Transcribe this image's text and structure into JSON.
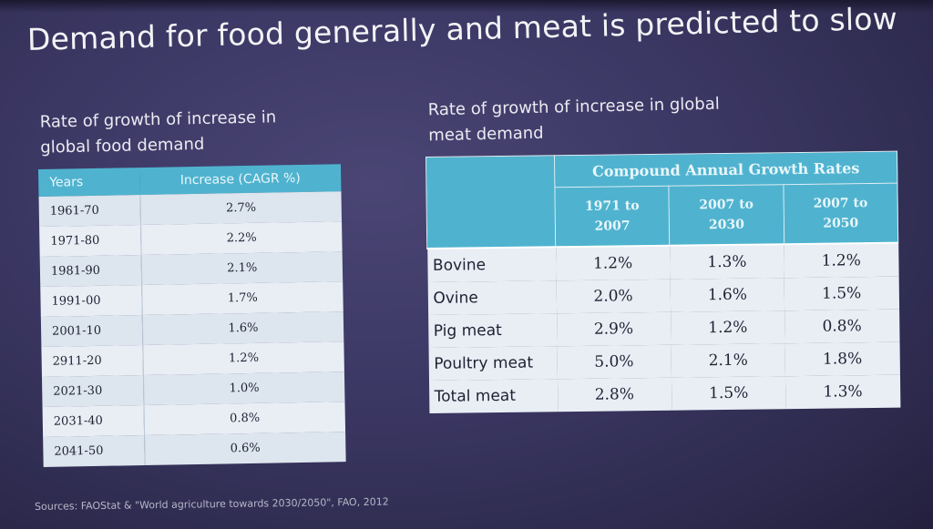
{
  "slide": {
    "title": "Demand for food generally and meat is predicted to slow",
    "sources": "Sources: FAOStat & \"World agriculture towards 2030/2050\", FAO, 2012"
  },
  "food_demand": {
    "caption_line1": "Rate of growth of increase in",
    "caption_line2": "global food demand",
    "headers": [
      "Years",
      "Increase (CAGR %)"
    ],
    "rows": [
      [
        "1961-70",
        "2.7%"
      ],
      [
        "1971-80",
        "2.2%"
      ],
      [
        "1981-90",
        "2.1%"
      ],
      [
        "1991-00",
        "1.7%"
      ],
      [
        "2001-10",
        "1.6%"
      ],
      [
        "2911-20",
        "1.2%"
      ],
      [
        "2021-30",
        "1.0%"
      ],
      [
        "2031-40",
        "0.8%"
      ],
      [
        "2041-50",
        "0.6%"
      ]
    ]
  },
  "meat_demand": {
    "caption_line1": "Rate of growth of increase in global",
    "caption_line2": "meat demand",
    "group_header": "Compound Annual Growth Rates",
    "period_headers": [
      [
        "1971 to",
        "2007"
      ],
      [
        "2007 to",
        "2030"
      ],
      [
        "2007 to",
        "2050"
      ]
    ],
    "rows": [
      [
        "Bovine",
        "1.2%",
        "1.3%",
        "1.2%"
      ],
      [
        "Ovine",
        "2.0%",
        "1.6%",
        "1.5%"
      ],
      [
        "Pig meat",
        "2.9%",
        "1.2%",
        "0.8%"
      ],
      [
        "Poultry meat",
        "5.0%",
        "2.1%",
        "1.8%"
      ],
      [
        "Total meat",
        "2.8%",
        "1.5%",
        "1.3%"
      ]
    ]
  }
}
